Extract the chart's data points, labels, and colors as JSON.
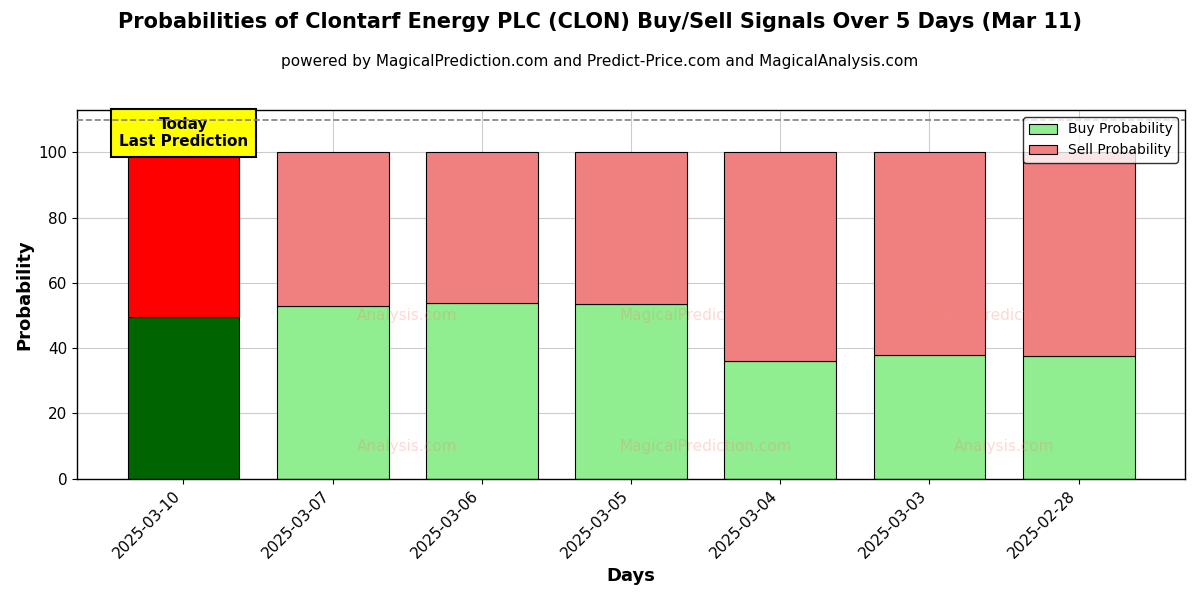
{
  "title": "Probabilities of Clontarf Energy PLC (CLON) Buy/Sell Signals Over 5 Days (Mar 11)",
  "subtitle": "powered by MagicalPrediction.com and Predict-Price.com and MagicalAnalysis.com",
  "xlabel": "Days",
  "ylabel": "Probability",
  "categories": [
    "2025-03-10",
    "2025-03-07",
    "2025-03-06",
    "2025-03-05",
    "2025-03-04",
    "2025-03-03",
    "2025-02-28"
  ],
  "buy_values": [
    49.5,
    53.0,
    54.0,
    53.5,
    36.0,
    38.0,
    37.5
  ],
  "sell_values": [
    50.5,
    47.0,
    46.0,
    46.5,
    64.0,
    62.0,
    62.5
  ],
  "buy_color_first": "#006400",
  "sell_color_first": "#ff0000",
  "buy_color_rest": "#90EE90",
  "sell_color_rest": "#F08080",
  "bar_edge_color": "black",
  "bar_edge_width": 0.8,
  "today_label_color": "#ffff00",
  "today_label_text": "Today\nLast Prediction",
  "legend_buy_label": "Buy Probability",
  "legend_sell_label": "Sell Probability",
  "ylim": [
    0,
    113
  ],
  "dashed_line_y": 110,
  "background_color": "#ffffff",
  "grid_color": "#cccccc",
  "title_fontsize": 15,
  "subtitle_fontsize": 11,
  "axis_label_fontsize": 13,
  "tick_fontsize": 11
}
